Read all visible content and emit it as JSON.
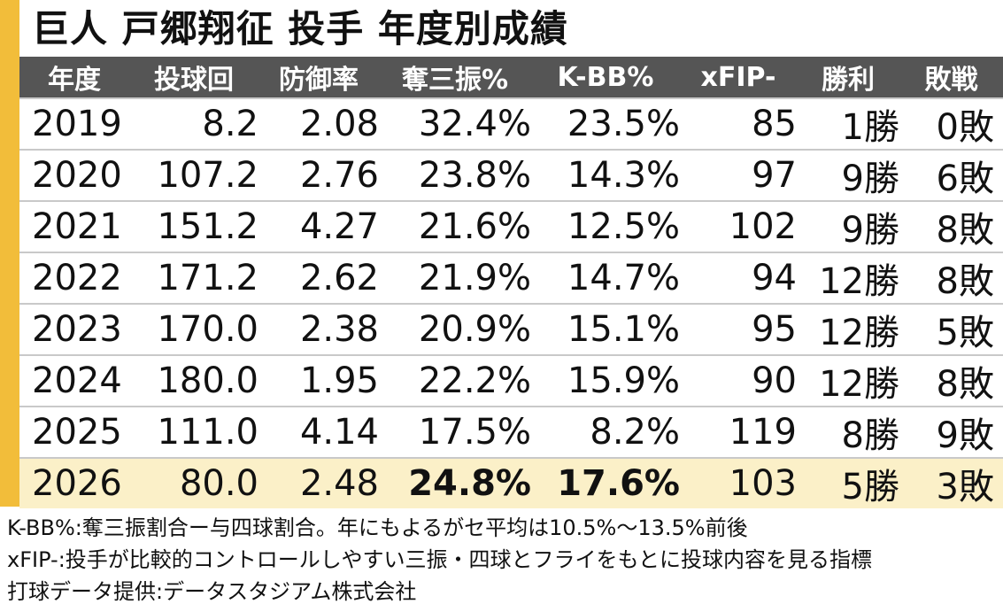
{
  "title": "巨人 戸郷翔征 投手 年度別成績",
  "colors": {
    "accent": "#f2bd3a",
    "header_bg": "#555555",
    "highlight_bg": "#fbf0c8",
    "divider": "#c9c9c9"
  },
  "headers": [
    "年度",
    "投球回",
    "防御率",
    "奪三振%",
    "K-BB%",
    "xFIP-",
    "勝利",
    "敗戦"
  ],
  "rows": [
    [
      "2019",
      "8.2",
      "2.08",
      "32.4%",
      "23.5%",
      "85",
      "1勝",
      "0敗"
    ],
    [
      "2020",
      "107.2",
      "2.76",
      "23.8%",
      "14.3%",
      "97",
      "9勝",
      "6敗"
    ],
    [
      "2021",
      "151.2",
      "4.27",
      "21.6%",
      "12.5%",
      "102",
      "9勝",
      "8敗"
    ],
    [
      "2022",
      "171.2",
      "2.62",
      "21.9%",
      "14.7%",
      "94",
      "12勝",
      "8敗"
    ],
    [
      "2023",
      "170.0",
      "2.38",
      "20.9%",
      "15.1%",
      "95",
      "12勝",
      "5敗"
    ],
    [
      "2024",
      "180.0",
      "1.95",
      "22.2%",
      "15.9%",
      "90",
      "12勝",
      "8敗"
    ],
    [
      "2025",
      "111.0",
      "4.14",
      "17.5%",
      "8.2%",
      "119",
      "8勝",
      "9敗"
    ],
    [
      "2026",
      "80.0",
      "2.48",
      "24.8%",
      "17.6%",
      "103",
      "5勝",
      "3敗"
    ]
  ],
  "notes": [
    "K-BB%:奪三振割合ー与四球割合。年にもよるがセ平均は10.5%～13.5%前後",
    "xFIP-:投手が比較的コントロールしやすい三振・四球とフライをもとに投球内容を見る指標",
    "打球データ提供:データスタジアム株式会社"
  ]
}
